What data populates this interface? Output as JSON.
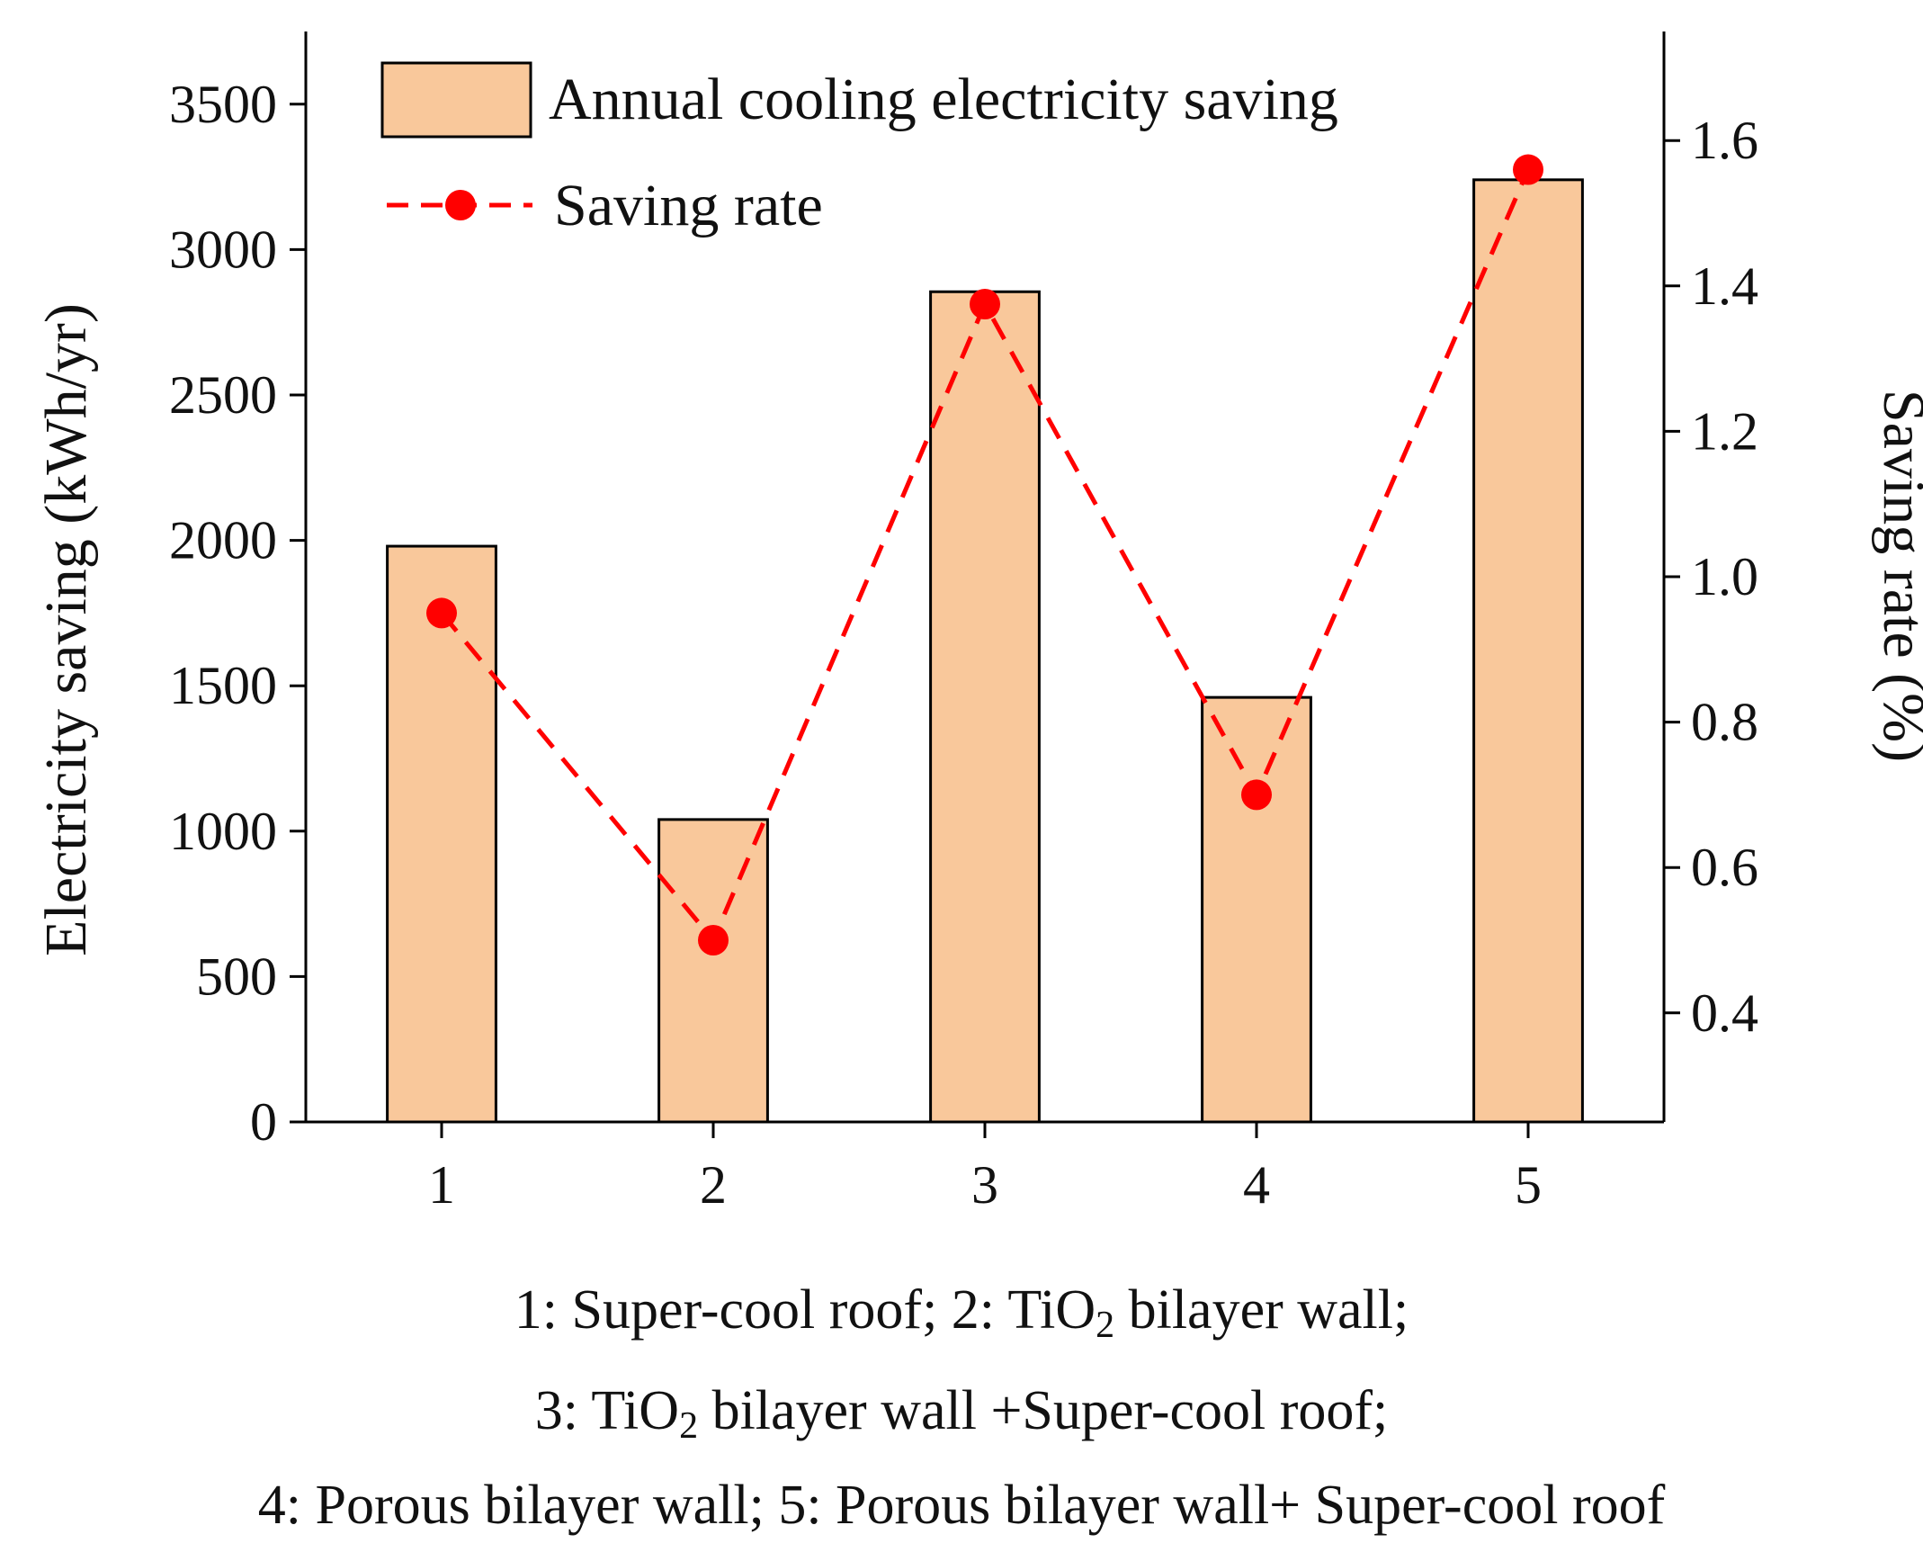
{
  "chart_data": {
    "type": "bar",
    "categories": [
      "1",
      "2",
      "3",
      "4",
      "5"
    ],
    "series": [
      {
        "name": "Annual cooling electricity saving",
        "kind": "bar",
        "axis": "left",
        "values": [
          1980,
          1040,
          2855,
          1460,
          3240
        ],
        "color": "#F9C89B"
      },
      {
        "name": "Saving rate",
        "kind": "line",
        "axis": "right",
        "values": [
          0.95,
          0.5,
          1.375,
          0.7,
          1.56
        ],
        "color": "#FF0000",
        "line_style": "dashed",
        "marker": "circle"
      }
    ],
    "ylabel": "Electricity saving (kWh/yr)",
    "y2label": "Saving rate (%)",
    "ylim": [
      0,
      3750
    ],
    "y2lim": [
      0.25,
      1.75
    ],
    "yticks": [
      "0",
      "500",
      "1000",
      "1500",
      "2000",
      "2500",
      "3000",
      "3500"
    ],
    "y2ticks": [
      "0.4",
      "0.6",
      "0.8",
      "1.0",
      "1.2",
      "1.4",
      "1.6"
    ],
    "legend_position": "top-left",
    "grid": false
  },
  "caption": {
    "line1": {
      "a": "1: Super-cool roof; 2: TiO",
      "sub": "2",
      "b": " bilayer wall;"
    },
    "line2": {
      "a": "3: TiO",
      "sub": "2",
      "b": " bilayer wall +Super-cool roof;"
    },
    "line3": "4: Porous bilayer wall; 5: Porous bilayer wall+ Super-cool roof"
  }
}
